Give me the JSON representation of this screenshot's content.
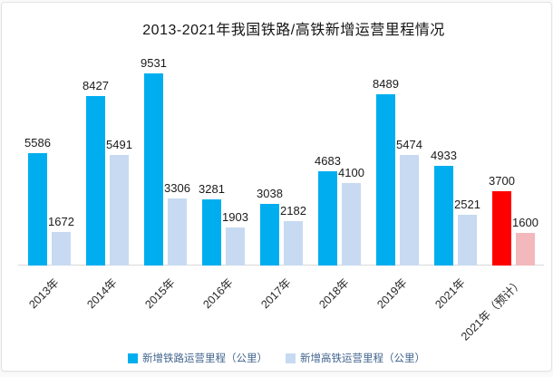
{
  "chart_data": {
    "type": "bar",
    "title": "2013-2021年我国铁路/高铁新增运营里程情况",
    "categories": [
      "2013年",
      "2014年",
      "2015年",
      "2016年",
      "2017年",
      "2018年",
      "2019年",
      "2021年",
      "2021年（预计）"
    ],
    "series": [
      {
        "name": "新增铁路运营里程（公里）",
        "values": [
          5586,
          8427,
          9531,
          3281,
          3038,
          4683,
          8489,
          4933,
          3700
        ]
      },
      {
        "name": "新增高铁运营里程（公里）",
        "values": [
          1672,
          5491,
          3306,
          1903,
          2182,
          4100,
          5474,
          2521,
          1600
        ]
      }
    ],
    "data_labels": true,
    "forecast_index": 8,
    "colors": {
      "series1": "#00AEEF",
      "series2": "#C7DAF1",
      "series1_forecast": "#FE0000",
      "series2_forecast": "#F2B8BB",
      "axis_line": "#d9d9d9",
      "legend_text": "#41648e"
    },
    "ylim": [
      0,
      9531
    ],
    "grid": false,
    "legend_position": "bottom",
    "legend": [
      {
        "label": "新增铁路运营里程（公里）",
        "color": "#00AEEF"
      },
      {
        "label": "新增高铁运营里程（公里）",
        "color": "#C7DAF1"
      }
    ]
  }
}
